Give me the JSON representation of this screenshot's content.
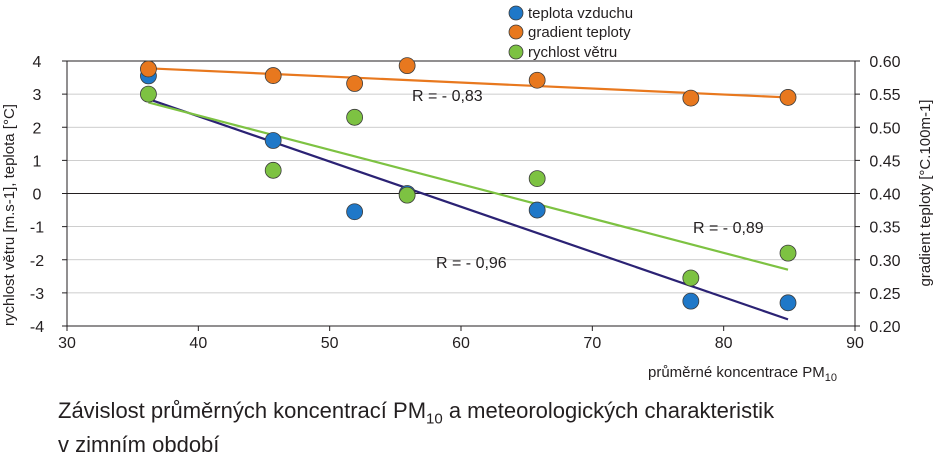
{
  "chart_data": {
    "type": "scatter",
    "xlabel": "průměrné koncentrace PM",
    "xlabel_sub": "10",
    "ylabel_left": "rychlost větru [m.s-1], teplota [°C]",
    "ylabel_right": "gradient teploty [°C.100m-1]",
    "x_ticks": [
      "30",
      "40",
      "50",
      "60",
      "70",
      "80",
      "90"
    ],
    "y_left_ticks": [
      "4",
      "3",
      "2",
      "1",
      "0",
      "-1",
      "-2",
      "-3",
      "-4"
    ],
    "y_right_ticks": [
      "0.60",
      "0.55",
      "0.50",
      "0.45",
      "0.40",
      "0.35",
      "0.30",
      "0.25",
      "0.20"
    ],
    "xlim": [
      30,
      90
    ],
    "ylim_left": [
      -4,
      4
    ],
    "ylim_right": [
      0.2,
      0.6
    ],
    "grid": "horizontal",
    "legend_position": "top-center",
    "series": [
      {
        "name": "teplota vzduchu",
        "color": "#1f78c8",
        "axis": "left",
        "points": [
          [
            36.2,
            3.55
          ],
          [
            45.7,
            1.6
          ],
          [
            51.9,
            -0.55
          ],
          [
            55.9,
            0.0
          ],
          [
            65.8,
            -0.5
          ],
          [
            77.5,
            -3.25
          ],
          [
            84.9,
            -3.3
          ]
        ],
        "trend": [
          [
            36.2,
            2.85
          ],
          [
            84.9,
            -3.8
          ]
        ],
        "trend_color": "#2b2274",
        "r_label": "R = - 0,96"
      },
      {
        "name": "gradient teploty",
        "color": "#e8781e",
        "axis": "right",
        "points": [
          [
            36.2,
            0.588
          ],
          [
            45.7,
            0.578
          ],
          [
            51.9,
            0.566
          ],
          [
            55.9,
            0.593
          ],
          [
            65.8,
            0.571
          ],
          [
            77.5,
            0.544
          ],
          [
            84.9,
            0.545
          ]
        ],
        "trend": [
          [
            36.2,
            0.589
          ],
          [
            84.9,
            0.545
          ]
        ],
        "trend_color": "#e8781e",
        "r_label": "R = - 0,83"
      },
      {
        "name": "rychlost větru",
        "color": "#7dc242",
        "axis": "left",
        "points": [
          [
            36.2,
            3.0
          ],
          [
            45.7,
            0.7
          ],
          [
            51.9,
            2.3
          ],
          [
            55.9,
            -0.05
          ],
          [
            65.8,
            0.45
          ],
          [
            77.5,
            -2.55
          ],
          [
            84.9,
            -1.8
          ]
        ],
        "trend": [
          [
            36.2,
            2.75
          ],
          [
            84.9,
            -2.3
          ]
        ],
        "trend_color": "#7dc242",
        "r_label": "R = - 0,89"
      }
    ]
  },
  "caption": {
    "line1_pre": "Závislost průměrných koncentrací PM",
    "line1_sub": "10",
    "line1_post": " a meteorologických charakteristik",
    "line2": "v zimním období"
  }
}
